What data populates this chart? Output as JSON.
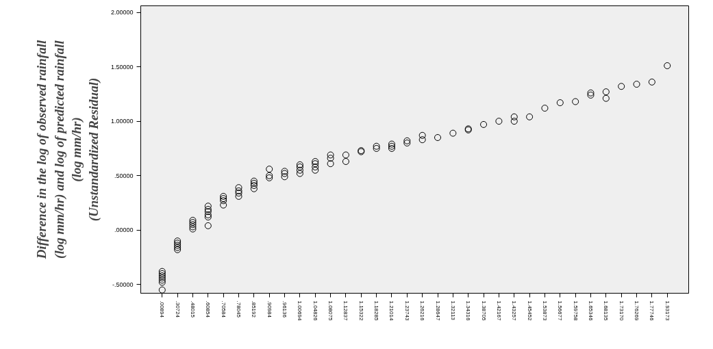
{
  "chart_data": {
    "type": "scatter",
    "ylabel": "Difference in the log of observed rainfall\n(log mm/hr) and log of predicted rainfall\n(log mm/hr)\n(Unstandardized Residual)",
    "categories": [
      ".00894",
      ".30724",
      ".48015",
      ".60854",
      ".70584",
      ".78045",
      ".85192",
      ".90984",
      ".96136",
      "1.00694",
      "1.04826",
      "1.08075",
      "1.12837",
      "1.15322",
      "1.18285",
      "1.21014",
      "1.23743",
      "1.26216",
      "1.28647",
      "1.32113",
      "1.34316",
      "1.38705",
      "1.42167",
      "1.43257",
      "1.45452",
      "1.53873",
      "1.56677",
      "1.59758",
      "1.65346",
      "1.68135",
      "1.73170",
      "1.76269",
      "1.77746",
      "1.93173"
    ],
    "series": [
      {
        "color": "#000000",
        "x": [
          ".00894",
          ".00894",
          ".00894",
          ".00894",
          ".00894",
          ".00894",
          ".00894",
          ".30724",
          ".30724",
          ".30724",
          ".30724",
          ".30724",
          ".48015",
          ".48015",
          ".48015",
          ".48015",
          ".48015",
          ".60854",
          ".60854",
          ".60854",
          ".60854",
          ".60854",
          ".60854",
          ".70584",
          ".70584",
          ".70584",
          ".70584",
          ".78045",
          ".78045",
          ".78045",
          ".78045",
          ".85192",
          ".85192",
          ".85192",
          ".85192",
          ".90984",
          ".90984",
          ".90984",
          ".96136",
          ".96136",
          ".96136",
          "1.00694",
          "1.00694",
          "1.00694",
          "1.00694",
          "1.04826",
          "1.04826",
          "1.04826",
          "1.04826",
          "1.08075",
          "1.08075",
          "1.08075",
          "1.12837",
          "1.12837",
          "1.15322",
          "1.15322",
          "1.18285",
          "1.18285",
          "1.21014",
          "1.21014",
          "1.21014",
          "1.23743",
          "1.23743",
          "1.26216",
          "1.26216",
          "1.28647",
          "1.32113",
          "1.34316",
          "1.34316",
          "1.38705",
          "1.42167",
          "1.43257",
          "1.43257",
          "1.45452",
          "1.53873",
          "1.56677",
          "1.59758",
          "1.65346",
          "1.65346",
          "1.68135",
          "1.68135",
          "1.73170",
          "1.76269",
          "1.77746",
          "1.93173"
        ],
        "values": [
          -0.38,
          -0.4,
          -0.42,
          -0.44,
          -0.46,
          -0.48,
          -0.55,
          -0.1,
          -0.12,
          -0.14,
          -0.16,
          -0.18,
          0.09,
          0.07,
          0.05,
          0.03,
          0.01,
          0.22,
          0.19,
          0.17,
          0.14,
          0.12,
          0.04,
          0.31,
          0.29,
          0.27,
          0.23,
          0.39,
          0.36,
          0.34,
          0.31,
          0.45,
          0.43,
          0.41,
          0.38,
          0.56,
          0.5,
          0.48,
          0.54,
          0.52,
          0.49,
          0.6,
          0.58,
          0.55,
          0.52,
          0.63,
          0.61,
          0.58,
          0.55,
          0.69,
          0.66,
          0.61,
          0.69,
          0.63,
          0.73,
          0.72,
          0.77,
          0.75,
          0.79,
          0.77,
          0.75,
          0.82,
          0.8,
          0.87,
          0.83,
          0.85,
          0.89,
          0.93,
          0.92,
          0.97,
          1.0,
          1.04,
          1.0,
          1.04,
          1.12,
          1.17,
          1.18,
          1.26,
          1.24,
          1.27,
          1.21,
          1.32,
          1.34,
          1.36,
          1.51
        ]
      }
    ],
    "ylim": [
      -0.58,
      2.06
    ],
    "yticks": [
      {
        "value": -0.5,
        "label": "-.50000"
      },
      {
        "value": 0,
        "label": ".00000"
      },
      {
        "value": 0.5,
        "label": ".50000"
      },
      {
        "value": 1,
        "label": "1.00000"
      },
      {
        "value": 1.5,
        "label": "1.50000"
      },
      {
        "value": 2,
        "label": "2.00000"
      }
    ],
    "marker": "circle",
    "grid": false
  }
}
